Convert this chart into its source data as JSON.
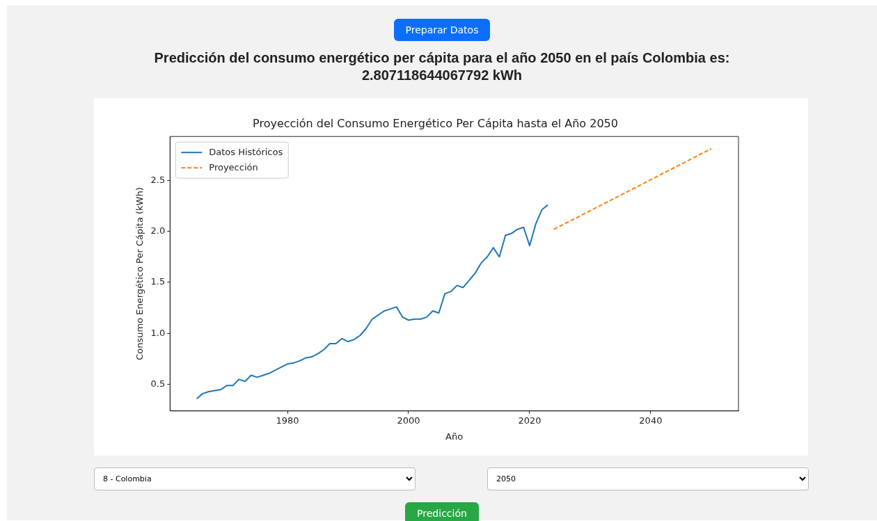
{
  "chart_data": {
    "type": "line",
    "title": "Proyección del Consumo Energético Per Cápita hasta el Año 2050",
    "xlabel": "Año",
    "ylabel": "Consumo Energético Per Cápita (kWh)",
    "annotations": [
      "Preparar Datos",
      "Predicción del consumo energético per cápita para el año 2050 en el país Colombia es: 2.807118644067792 kWh",
      "8 - Colombia",
      "2050",
      "Predicción"
    ],
    "series": [
      {
        "name": "Datos Históricos",
        "color": "#1f77b4",
        "line_style": "solid",
        "x": [
          1965,
          1966,
          1967,
          1968,
          1969,
          1970,
          1971,
          1972,
          1973,
          1974,
          1975,
          1976,
          1977,
          1978,
          1979,
          1980,
          1981,
          1982,
          1983,
          1984,
          1985,
          1986,
          1987,
          1988,
          1989,
          1990,
          1991,
          1992,
          1993,
          1994,
          1995,
          1996,
          1997,
          1998,
          1999,
          2000,
          2001,
          2002,
          2003,
          2004,
          2005,
          2006,
          2007,
          2008,
          2009,
          2010,
          2011,
          2012,
          2013,
          2014,
          2015,
          2016,
          2017,
          2018,
          2019,
          2020,
          2021,
          2022,
          2023
        ],
        "values": [
          0.36,
          0.41,
          0.43,
          0.44,
          0.45,
          0.49,
          0.49,
          0.55,
          0.53,
          0.59,
          0.57,
          0.59,
          0.61,
          0.64,
          0.67,
          0.7,
          0.71,
          0.73,
          0.76,
          0.77,
          0.8,
          0.84,
          0.9,
          0.9,
          0.95,
          0.92,
          0.94,
          0.98,
          1.05,
          1.14,
          1.18,
          1.22,
          1.24,
          1.26,
          1.16,
          1.13,
          1.14,
          1.14,
          1.16,
          1.22,
          1.2,
          1.39,
          1.41,
          1.47,
          1.45,
          1.52,
          1.59,
          1.69,
          1.75,
          1.84,
          1.75,
          1.96,
          1.98,
          2.02,
          2.04,
          1.86,
          2.07,
          2.21,
          2.26
        ]
      },
      {
        "name": "Proyección",
        "color": "#ff7f0e",
        "line_style": "dashed",
        "x": [
          2024,
          2050
        ],
        "values": [
          2.02,
          2.81
        ]
      }
    ],
    "xlim": [
      1960.6,
      2054.5
    ],
    "xticks": [
      1980,
      2000,
      2020,
      2040
    ],
    "ylim": [
      0.24,
      2.93
    ],
    "yticks": [
      0.5,
      {
        "value": 1,
        "label": "1.0"
      },
      1.5,
      {
        "value": 2,
        "label": "2.0"
      },
      2.5
    ],
    "grid": false,
    "legend": "top left",
    "marker": "none"
  }
}
